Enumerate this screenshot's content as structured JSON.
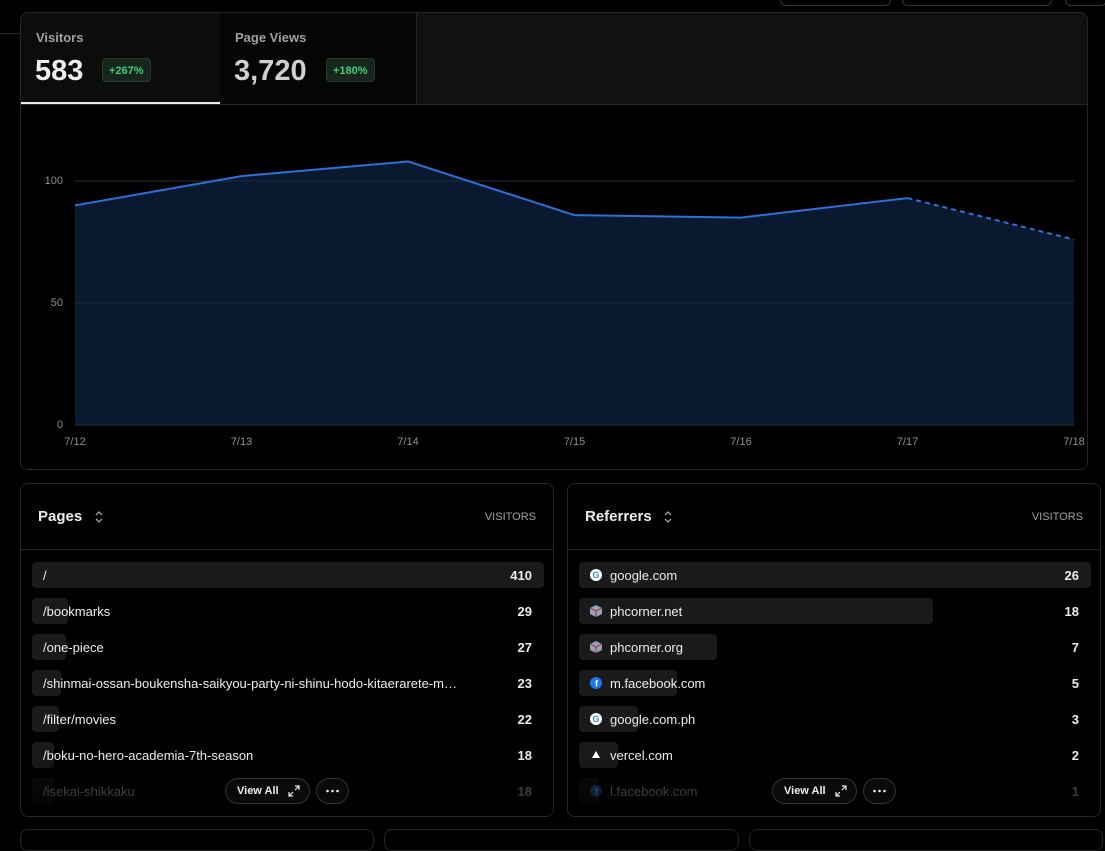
{
  "tabs": [
    {
      "label": "Visitors",
      "value": "583",
      "change": "+267%"
    },
    {
      "label": "Page Views",
      "value": "3,720",
      "change": "+180%"
    }
  ],
  "chart_data": {
    "type": "line",
    "categories": [
      "7/12",
      "7/13",
      "7/14",
      "7/15",
      "7/16",
      "7/17",
      "7/18"
    ],
    "values": [
      90,
      102,
      108,
      86,
      85,
      93,
      76
    ],
    "color": "#2f6fd8",
    "ylim": [
      0,
      115
    ],
    "yticks": [
      0,
      50,
      100
    ],
    "grid": true,
    "dashed_from": 5
  },
  "pages": {
    "title": "Pages",
    "column": "VISITORS",
    "rows": [
      {
        "label": "/",
        "value": 410
      },
      {
        "label": "/bookmarks",
        "value": 29
      },
      {
        "label": "/one-piece",
        "value": 27
      },
      {
        "label": "/shinmai-ossan-boukensha-saikyou-party-ni-shinu-hodo-kitaerarete-m…",
        "value": 23
      },
      {
        "label": "/filter/movies",
        "value": 22
      },
      {
        "label": "/boku-no-hero-academia-7th-season",
        "value": 18
      },
      {
        "label": "/isekai-shikkaku",
        "value": 18
      }
    ],
    "view_all": "View All"
  },
  "referrers": {
    "title": "Referrers",
    "column": "VISITORS",
    "rows": [
      {
        "label": "google.com",
        "value": 26
      },
      {
        "label": "phcorner.net",
        "value": 18
      },
      {
        "label": "phcorner.org",
        "value": 7
      },
      {
        "label": "m.facebook.com",
        "value": 5
      },
      {
        "label": "google.com.ph",
        "value": 3
      },
      {
        "label": "vercel.com",
        "value": 2
      },
      {
        "label": "l.facebook.com",
        "value": 1
      }
    ],
    "view_all": "View All"
  }
}
